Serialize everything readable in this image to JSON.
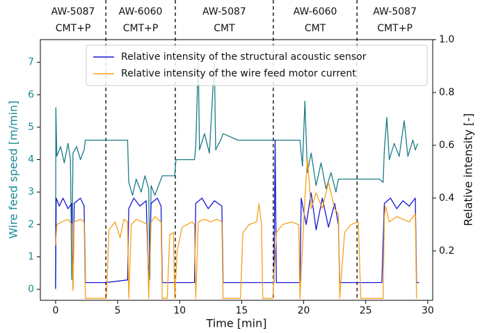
{
  "chart_data": {
    "type": "line",
    "xlabel": "Time [min]",
    "ylabel": "Wire feed speed [m/min]",
    "y2label": "Relative intensity [-]",
    "xlim": [
      -1.23,
      30.4
    ],
    "ylim": [
      -0.34,
      7.7
    ],
    "y2lim": [
      0.013,
      1.0
    ],
    "xticks": [
      0,
      5,
      10,
      15,
      20,
      25,
      30
    ],
    "yticks": [
      0,
      1,
      2,
      3,
      4,
      5,
      6,
      7
    ],
    "y2ticks": [
      0.2,
      0.4,
      0.6,
      0.8,
      {
        "value": 1,
        "label": "1.0"
      }
    ],
    "legend": "upper right",
    "ylabel_color": "#1a8a94",
    "dividers": [
      4.05,
      9.65,
      17.55,
      24.3
    ],
    "section_labels": [
      [
        "AW-5087",
        "CMT+P"
      ],
      [
        "AW-6060",
        "CMT+P"
      ],
      [
        "AW-5087",
        "CMT"
      ],
      [
        "AW-6060",
        "CMT"
      ],
      [
        "AW-5087",
        "CMT+P"
      ]
    ],
    "series": [
      {
        "color": "#1a7a86",
        "x": [
          0,
          0.02,
          0.1,
          0.4,
          0.7,
          1.0,
          1.2,
          1.3,
          1.4,
          1.7,
          2.0,
          2.3,
          2.4,
          5.8,
          5.9,
          6.2,
          6.5,
          6.9,
          7.2,
          7.5,
          7.6,
          7.7,
          8.0,
          8.4,
          8.6,
          9.6,
          9.7,
          11.2,
          11.3,
          11.5,
          11.6,
          12.0,
          12.4,
          12.8,
          12.9,
          13.3,
          13.5,
          14.7,
          19.7,
          19.9,
          20.1,
          20.3,
          20.6,
          21.0,
          21.4,
          21.8,
          22.2,
          22.6,
          22.8,
          26.1,
          26.4,
          26.5,
          26.7,
          26.9,
          27.3,
          27.7,
          28.1,
          28.4,
          28.8,
          29.0,
          29.2
        ],
        "values": [
          0,
          5.6,
          4.1,
          4.4,
          3.9,
          4.5,
          4.0,
          0.3,
          4.2,
          4.4,
          4.0,
          4.3,
          4.6,
          4.6,
          3.3,
          2.9,
          3.4,
          3.0,
          3.5,
          3.1,
          0.3,
          3.2,
          2.9,
          3.3,
          3.5,
          3.5,
          4.0,
          4.0,
          4.4,
          7.1,
          4.3,
          4.8,
          4.2,
          7.0,
          4.3,
          4.6,
          4.8,
          4.6,
          4.6,
          3.8,
          5.8,
          3.6,
          4.2,
          3.2,
          3.9,
          3.1,
          3.6,
          3.0,
          3.4,
          3.4,
          3.3,
          4.3,
          5.3,
          4.0,
          4.5,
          4.1,
          5.2,
          4.1,
          4.6,
          4.3,
          4.5
        ]
      },
      {
        "name": "Relative intensity of the structural acoustic sensor",
        "color": "#1414d4",
        "axis": "y2",
        "x": [
          0,
          0.05,
          0.3,
          0.6,
          1.0,
          1.3,
          1.4,
          1.5,
          2.0,
          2.3,
          2.4,
          4.0,
          5.8,
          5.9,
          6.3,
          6.8,
          7.3,
          7.5,
          7.7,
          8.2,
          8.5,
          8.6,
          11.2,
          11.3,
          11.8,
          12.3,
          12.8,
          13.4,
          13.5,
          17.6,
          17.7,
          17.8,
          19.7,
          19.8,
          20.2,
          20.6,
          21.0,
          21.5,
          22.0,
          22.5,
          22.8,
          22.9,
          26.3,
          26.5,
          27.0,
          27.5,
          28.0,
          28.5,
          29.0,
          29.1,
          29.3
        ],
        "values": [
          0.06,
          0.4,
          0.37,
          0.4,
          0.36,
          0.38,
          0.06,
          0.38,
          0.4,
          0.37,
          0.08,
          0.08,
          0.09,
          0.36,
          0.4,
          0.37,
          0.39,
          0.08,
          0.38,
          0.4,
          0.37,
          0.08,
          0.08,
          0.38,
          0.4,
          0.36,
          0.39,
          0.37,
          0.08,
          0.08,
          0.62,
          0.08,
          0.08,
          0.4,
          0.3,
          0.42,
          0.28,
          0.4,
          0.29,
          0.38,
          0.3,
          0.08,
          0.08,
          0.38,
          0.4,
          0.36,
          0.39,
          0.37,
          0.4,
          0.08,
          0.08
        ]
      },
      {
        "name": "Relative intensity of the wire feed motor current",
        "color": "#f5a01a",
        "axis": "y2",
        "x": [
          0,
          0.1,
          0.5,
          1.0,
          1.3,
          1.4,
          1.5,
          2.0,
          2.3,
          2.4,
          4.1,
          4.3,
          4.8,
          5.2,
          5.5,
          5.8,
          5.9,
          6.1,
          6.5,
          7.0,
          7.4,
          7.5,
          7.7,
          8.0,
          8.5,
          8.6,
          9.0,
          9.2,
          9.5,
          9.6,
          9.8,
          10.2,
          11.0,
          11.2,
          11.3,
          11.5,
          12.0,
          12.5,
          13.0,
          13.4,
          13.5,
          14.9,
          15.1,
          15.6,
          16.2,
          16.4,
          16.6,
          16.7,
          17.5,
          17.8,
          18.3,
          19.0,
          19.6,
          19.7,
          20.1,
          20.3,
          20.6,
          21.0,
          21.5,
          22.0,
          22.5,
          22.8,
          22.9,
          23.3,
          23.8,
          24.4,
          24.6,
          26.4,
          26.5,
          26.6,
          26.9,
          27.5,
          28.0,
          28.5,
          29.0,
          29.1
        ],
        "values": [
          0.22,
          0.3,
          0.31,
          0.32,
          0.3,
          0.05,
          0.31,
          0.32,
          0.31,
          0.02,
          0.02,
          0.28,
          0.31,
          0.25,
          0.32,
          0.31,
          0.02,
          0.3,
          0.32,
          0.31,
          0.3,
          0.02,
          0.31,
          0.33,
          0.31,
          0.02,
          0.02,
          0.26,
          0.27,
          0.02,
          0.2,
          0.29,
          0.31,
          0.3,
          0.02,
          0.31,
          0.32,
          0.31,
          0.32,
          0.31,
          0.02,
          0.02,
          0.27,
          0.3,
          0.31,
          0.38,
          0.3,
          0.02,
          0.02,
          0.27,
          0.3,
          0.31,
          0.3,
          0.02,
          0.4,
          0.55,
          0.36,
          0.42,
          0.36,
          0.46,
          0.36,
          0.34,
          0.02,
          0.27,
          0.3,
          0.31,
          0.02,
          0.02,
          0.33,
          0.37,
          0.31,
          0.33,
          0.32,
          0.31,
          0.34,
          0.02
        ]
      }
    ]
  }
}
